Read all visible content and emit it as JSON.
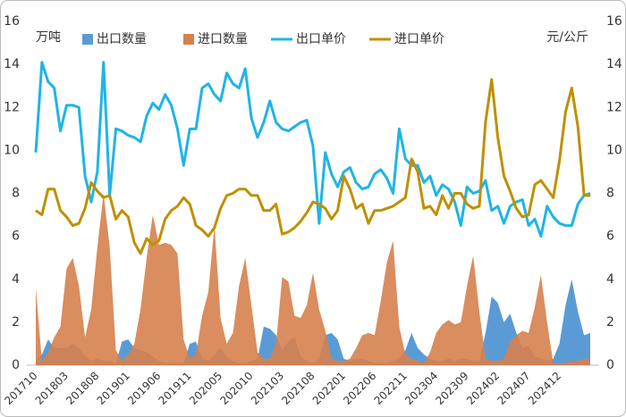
{
  "chart_data": {
    "type": "combo",
    "y_label": "万吨",
    "y2_label": "元/公斤",
    "categories": [
      "201710",
      null,
      null,
      null,
      null,
      "201803",
      null,
      null,
      null,
      null,
      "201808",
      null,
      null,
      null,
      null,
      "201901",
      null,
      null,
      null,
      null,
      "201906",
      null,
      null,
      null,
      null,
      "201911",
      null,
      null,
      null,
      null,
      "202005",
      null,
      null,
      null,
      null,
      "202010",
      null,
      null,
      null,
      null,
      "202103",
      null,
      null,
      null,
      null,
      "202108",
      null,
      null,
      null,
      null,
      "202201",
      null,
      null,
      null,
      null,
      "202206",
      null,
      null,
      null,
      null,
      "202211",
      null,
      null,
      null,
      null,
      "202304",
      null,
      null,
      null,
      null,
      "202309",
      null,
      null,
      null,
      null,
      "202402",
      null,
      null,
      null,
      null,
      "202407",
      null,
      null,
      null,
      null,
      "202412",
      null,
      null,
      null,
      null,
      null
    ],
    "ylim": [
      0,
      16
    ],
    "yticks": [
      0,
      2,
      4,
      6,
      8,
      10,
      12,
      14,
      16
    ],
    "y2lim": [
      0,
      16
    ],
    "y2ticks": [
      0,
      2,
      4,
      6,
      8,
      10,
      12,
      14,
      16
    ],
    "series": [
      {
        "name": "出口数量",
        "type": "area",
        "color": "#5b9bd5",
        "values": [
          0.2,
          0.5,
          1.2,
          0.8,
          0.8,
          0.8,
          1.0,
          0.8,
          0.4,
          0.2,
          0.3,
          0.2,
          0.2,
          0.1,
          1.1,
          1.2,
          0.8,
          0.7,
          0.6,
          0.4,
          0.2,
          0.1,
          0.1,
          0.1,
          0.1,
          1.0,
          1.1,
          0.3,
          0.2,
          0.5,
          0.8,
          0.4,
          0.2,
          0.1,
          0.1,
          0.2,
          0.3,
          1.8,
          1.7,
          1.4,
          0.7,
          1.1,
          1.3,
          0.4,
          0.2,
          0.1,
          0.3,
          1.4,
          1.5,
          1.2,
          0.3,
          0.2,
          0.3,
          0.3,
          0.2,
          0.1,
          0.1,
          0.1,
          0.2,
          0.3,
          0.7,
          1.5,
          0.8,
          0.5,
          0.3,
          0.2,
          0.2,
          0.3,
          0.2,
          0.3,
          0.3,
          0.2,
          0.2,
          1.5,
          3.2,
          2.9,
          2.0,
          2.4,
          1.5,
          0.8,
          0.9,
          0.4,
          0.3,
          0.2,
          0.3,
          1.0,
          2.8,
          4.0,
          2.5,
          1.4,
          1.5
        ]
      },
      {
        "name": "进口数量",
        "type": "area",
        "color": "#d6814c",
        "values": [
          3.6,
          0.2,
          0.6,
          1.3,
          1.8,
          4.5,
          5.0,
          3.7,
          1.3,
          2.6,
          5.5,
          8.0,
          5.5,
          0.7,
          0.2,
          0.5,
          1.0,
          2.6,
          5.0,
          7.0,
          5.6,
          5.7,
          5.6,
          5.2,
          1.2,
          0.3,
          0.5,
          2.3,
          3.4,
          6.5,
          2.2,
          1.0,
          1.5,
          3.7,
          5.0,
          2.8,
          0.6,
          0.3,
          0.3,
          1.0,
          4.1,
          3.9,
          2.3,
          2.2,
          2.8,
          4.3,
          2.6,
          1.6,
          0.3,
          0.2,
          0.2,
          0.3,
          0.8,
          1.4,
          1.5,
          1.4,
          3.0,
          4.8,
          5.8,
          1.8,
          0.5,
          0.3,
          0.2,
          0.1,
          0.6,
          1.5,
          1.9,
          2.1,
          1.9,
          2.0,
          3.7,
          5.1,
          2.5,
          0.3,
          0.2,
          0.2,
          0.3,
          1.1,
          1.4,
          1.6,
          1.5,
          2.7,
          4.2,
          2.0,
          0.1,
          0.1,
          0.1,
          0.2,
          0.2,
          0.3,
          0.3
        ]
      },
      {
        "name": "出口单价",
        "type": "line",
        "axis": "y2",
        "color": "#1fb4e6",
        "values": [
          9.9,
          14.1,
          13.2,
          12.9,
          10.9,
          12.1,
          12.1,
          12.0,
          8.8,
          7.6,
          9.0,
          14.1,
          7.9,
          11.0,
          10.9,
          10.7,
          10.6,
          10.4,
          11.6,
          12.2,
          11.9,
          12.6,
          12.1,
          11.0,
          9.3,
          11.0,
          11.0,
          12.9,
          13.1,
          12.6,
          12.3,
          13.6,
          13.1,
          12.9,
          13.8,
          11.5,
          10.6,
          11.3,
          12.3,
          11.3,
          11.0,
          10.9,
          11.1,
          11.3,
          11.4,
          10.2,
          6.6,
          9.9,
          8.9,
          8.3,
          9.0,
          9.2,
          8.5,
          8.2,
          8.3,
          8.9,
          9.1,
          8.7,
          8.0,
          11.0,
          9.6,
          9.3,
          9.3,
          8.5,
          8.8,
          7.9,
          8.4,
          8.2,
          7.6,
          6.5,
          8.3,
          8.0,
          8.1,
          8.6,
          7.2,
          7.4,
          6.6,
          7.4,
          7.6,
          7.7,
          6.5,
          6.8,
          6.0,
          7.4,
          6.9,
          6.6,
          6.5,
          6.5,
          7.5,
          7.9,
          8.0
        ]
      },
      {
        "name": "进口单价",
        "type": "line",
        "axis": "y2",
        "color": "#bf9000",
        "values": [
          7.2,
          7.0,
          8.2,
          8.2,
          7.2,
          6.9,
          6.5,
          6.6,
          7.3,
          8.5,
          8.1,
          7.8,
          7.9,
          6.8,
          7.2,
          6.9,
          5.7,
          5.2,
          5.9,
          5.6,
          5.8,
          6.8,
          7.2,
          7.4,
          7.8,
          7.5,
          6.5,
          6.3,
          6.0,
          6.4,
          7.3,
          7.9,
          8.0,
          8.2,
          8.2,
          7.9,
          7.9,
          7.2,
          7.2,
          7.5,
          6.1,
          6.2,
          6.4,
          6.7,
          7.1,
          7.6,
          7.5,
          7.3,
          6.8,
          7.2,
          8.8,
          8.2,
          7.3,
          7.5,
          6.6,
          7.2,
          7.2,
          7.3,
          7.4,
          7.6,
          7.8,
          9.6,
          9.0,
          7.3,
          7.4,
          7.0,
          7.9,
          7.3,
          8.0,
          8.0,
          7.5,
          7.3,
          7.4,
          11.3,
          13.3,
          10.6,
          8.8,
          8.1,
          7.3,
          6.9,
          7.0,
          8.4,
          8.6,
          8.2,
          7.8,
          9.5,
          11.8,
          12.9,
          11.1,
          7.9,
          7.9
        ]
      }
    ]
  }
}
